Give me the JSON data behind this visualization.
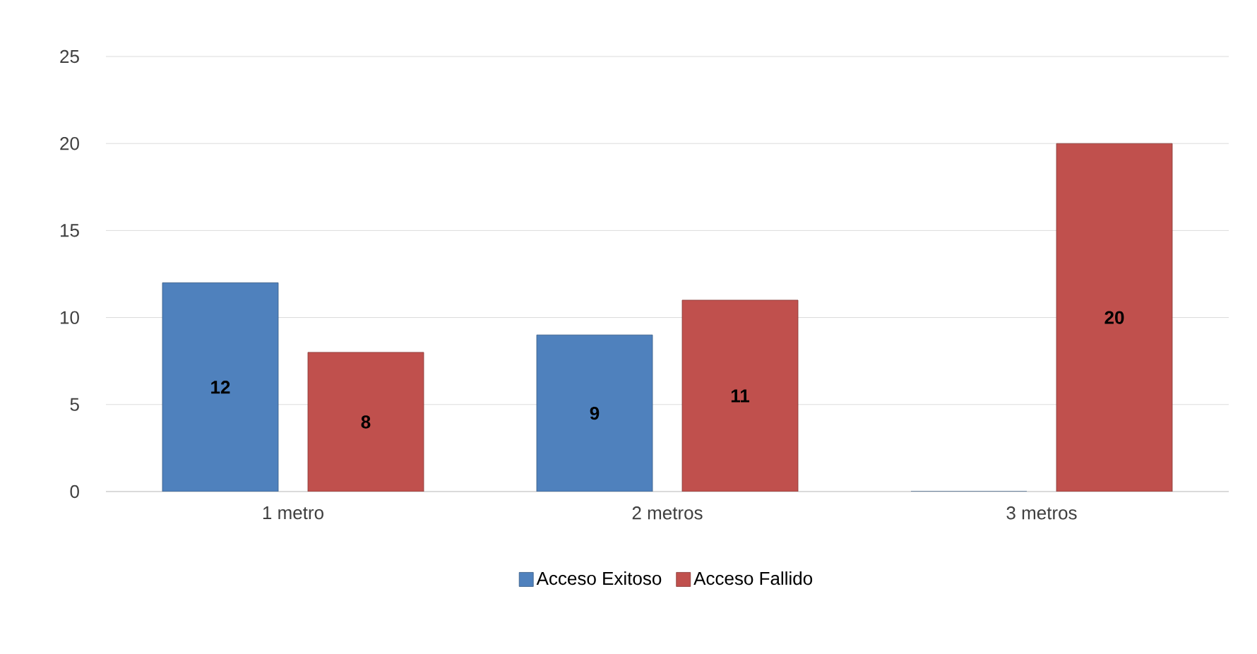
{
  "chart_data": {
    "type": "bar",
    "categories": [
      "1 metro",
      "2 metros",
      "3 metros"
    ],
    "series": [
      {
        "name": "Acceso Exitoso",
        "color": "#4f81bd",
        "values": [
          12,
          9,
          0
        ],
        "value_labels": [
          "12",
          "9",
          null
        ]
      },
      {
        "name": "Acceso Fallido",
        "color": "#c0504d",
        "values": [
          8,
          11,
          20
        ],
        "value_labels": [
          "8",
          "11",
          "20"
        ]
      }
    ],
    "ylim": [
      0,
      25
    ],
    "yticks": [
      0,
      5,
      10,
      15,
      20,
      25
    ],
    "grid": "y",
    "legend": "bottom"
  }
}
